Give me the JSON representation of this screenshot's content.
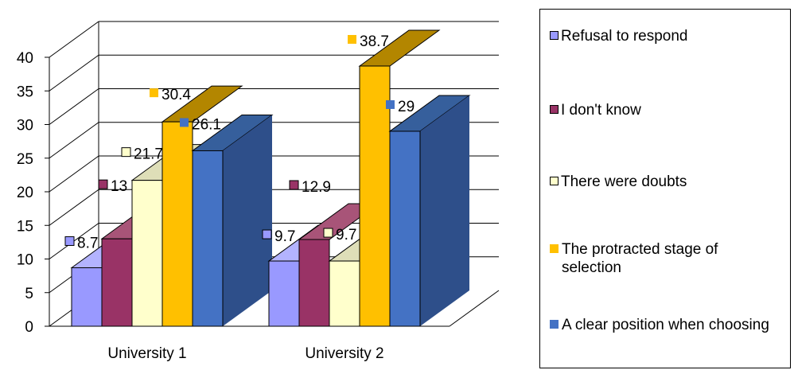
{
  "chart_data": {
    "type": "bar",
    "categories": [
      "University 1",
      "University 2"
    ],
    "series": [
      {
        "name": "Refusal to respond",
        "values": [
          8.7,
          9.7
        ],
        "color": "#9999ff",
        "side": "#7a7acc",
        "top": "#b3b3ff"
      },
      {
        "name": "I don't know",
        "values": [
          13,
          12.9
        ],
        "color": "#993366",
        "side": "#7a2952",
        "top": "#a85478"
      },
      {
        "name": "There were doubts",
        "values": [
          21.7,
          9.7
        ],
        "color": "#ffffcc",
        "side": "#cccc99",
        "top": "#dedeb8"
      },
      {
        "name": "The protracted stage of selection",
        "values": [
          30.4,
          38.7
        ],
        "color": "#ffc000",
        "side": "#d19e00",
        "top": "#b38600"
      },
      {
        "name": "A clear position when choosing",
        "values": [
          26.1,
          29
        ],
        "color": "#4472c4",
        "side": "#2e4f8a",
        "top": "#365f9c"
      }
    ],
    "data_labels": [
      [
        "8.7",
        "9.7"
      ],
      [
        "13",
        "12.9"
      ],
      [
        "21.7",
        "9.7"
      ],
      [
        "30.4",
        "38.7"
      ],
      [
        "26.1",
        "29"
      ]
    ],
    "y_ticks": [
      "0",
      "5",
      "10",
      "15",
      "20",
      "25",
      "30",
      "35",
      "40"
    ],
    "ylim": [
      0,
      40
    ],
    "legend_position": "right",
    "grid": true,
    "style": "3d-clustered-bar"
  }
}
